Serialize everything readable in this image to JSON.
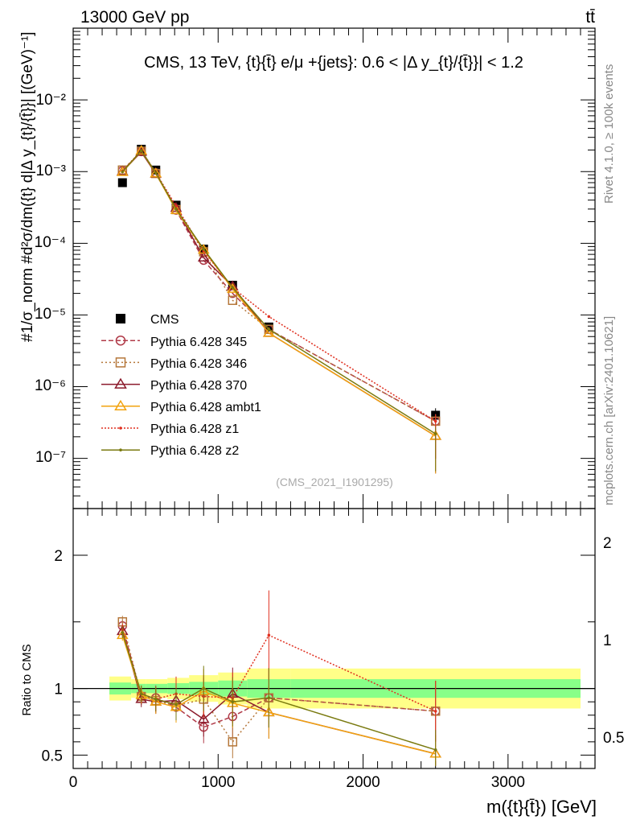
{
  "header": {
    "left": "13000 GeV pp",
    "right": "tt̄",
    "side_rivet": "Rivet 4.1.0, ≥ 100k events",
    "side_mcplots": "mcplots.cern.ch [arXiv:2401.10621]"
  },
  "chart_data": {
    "type": "line",
    "title": "CMS, 13 TeV, {t}{t̄} e/μ +{jets}: 0.6 < |Δ y_{t}/{t̄}}| < 1.2",
    "watermark": "(CMS_2021_I1901295)",
    "xlabel": "m({t}{t̄}) [GeV]",
    "ylabel": "#1/σ_norm #d²σ/dm({t} d|Δ y_{t}/{t̄}}| [(GeV)⁻¹]",
    "ratio_ylabel": "Ratio to CMS",
    "x_ticks": [
      "0",
      "1000",
      "2000",
      "3000"
    ],
    "y_ticks": [
      "10⁻²",
      "10⁻³",
      "10⁻⁴",
      "10⁻⁵",
      "10⁻⁶",
      "10⁻⁷"
    ],
    "ratio_ticks": [
      "2",
      "1",
      "0.5"
    ],
    "xlim": [
      0,
      3600
    ],
    "ylim_log10": [
      -7.7,
      -1.0
    ],
    "ratio_ylim": [
      0.4,
      2.35
    ],
    "legend_position": "center-left",
    "x": [
      340,
      470,
      570,
      710,
      900,
      1100,
      1350,
      2500
    ],
    "bin_edges": [
      250,
      400,
      500,
      650,
      800,
      1000,
      1200,
      1500,
      3500
    ],
    "band_inner": [
      0.045,
      0.035,
      0.035,
      0.04,
      0.05,
      0.06,
      0.07,
      0.07
    ],
    "band_outer": [
      0.09,
      0.07,
      0.07,
      0.08,
      0.1,
      0.12,
      0.15,
      0.15
    ],
    "series": [
      {
        "name": "CMS",
        "color": "#000000",
        "marker": "square-filled",
        "dash": "",
        "values": [
          0.0007,
          0.00205,
          0.00105,
          0.00034,
          8.3e-05,
          2.6e-05,
          6.8e-06,
          4e-07
        ]
      },
      {
        "name": "Pythia 6.428 345",
        "color": "#b03a48",
        "marker": "circle",
        "dash": "6,3",
        "values": [
          0.00103,
          0.0019,
          0.00096,
          0.00029,
          5.8e-05,
          2e-05,
          6.3e-06,
          3.3e-07
        ],
        "ratio": [
          1.47,
          0.94,
          0.93,
          0.86,
          0.71,
          0.79,
          0.93,
          0.83
        ]
      },
      {
        "name": "Pythia 6.428 346",
        "color": "#b5773a",
        "marker": "square",
        "dash": "2,3",
        "values": [
          0.00105,
          0.00192,
          0.00094,
          0.000295,
          7.6e-05,
          1.6e-05,
          6.3e-06,
          3.3e-07
        ],
        "ratio": [
          1.5,
          0.94,
          0.91,
          0.87,
          0.92,
          0.6,
          0.93,
          0.83
        ]
      },
      {
        "name": "Pythia 6.428 370",
        "color": "#8b1a2b",
        "marker": "triangle",
        "dash": "",
        "values": [
          0.001,
          0.00188,
          0.00093,
          0.00031,
          6.3e-05,
          2.5e-05,
          5.6e-06,
          2.05e-07
        ],
        "ratio": [
          1.43,
          0.92,
          0.9,
          0.91,
          0.77,
          0.96,
          0.82,
          0.51
        ]
      },
      {
        "name": "Pythia 6.428 ambt1",
        "color": "#f2a30f",
        "marker": "triangle",
        "dash": "",
        "values": [
          0.00098,
          0.00195,
          0.00094,
          0.00029,
          8.1e-05,
          2.3e-05,
          5.6e-06,
          2.05e-07
        ],
        "ratio": [
          1.4,
          0.95,
          0.9,
          0.86,
          0.98,
          0.89,
          0.82,
          0.51
        ]
      },
      {
        "name": "Pythia 6.428 z1",
        "color": "#e03020",
        "marker": "dot",
        "dash": "2,2",
        "values": [
          0.00101,
          0.00197,
          0.00097,
          0.00033,
          7.8e-05,
          2.4e-05,
          9.5e-06,
          3.3e-07
        ],
        "ratio": [
          1.44,
          0.96,
          0.92,
          0.96,
          0.94,
          0.93,
          1.4,
          0.83
        ]
      },
      {
        "name": "Pythia 6.428 z2",
        "color": "#7a7a10",
        "marker": "dot",
        "dash": "",
        "values": [
          0.00099,
          0.00196,
          0.00096,
          0.0003,
          8.3e-05,
          2.4e-05,
          6.3e-06,
          2.2e-07
        ],
        "ratio": [
          1.42,
          0.96,
          0.92,
          0.88,
          1.0,
          0.9,
          0.93,
          0.54
        ]
      }
    ]
  }
}
